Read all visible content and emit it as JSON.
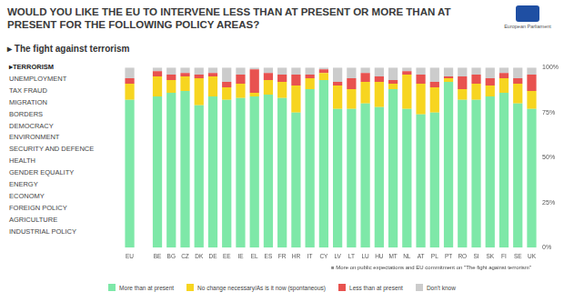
{
  "chart_data": {
    "type": "bar",
    "title": "WOULD YOU LIKE THE EU TO INTERVENE LESS THAN AT PRESENT OR MORE THAN AT PRESENT FOR THE FOLLOWING POLICY AREAS?",
    "subtitle": "The fight against terrorism",
    "categories": [
      "EU",
      null,
      "BE",
      "BG",
      "CZ",
      "DK",
      "DE",
      "EE",
      "IE",
      "EL",
      "ES",
      "FR",
      "HR",
      "IT",
      "CY",
      "LV",
      "LT",
      "LU",
      "HU",
      "MT",
      "NL",
      "AT",
      "PL",
      "PT",
      "RO",
      "SI",
      "SK",
      "FI",
      "SE",
      "UK"
    ],
    "series": [
      {
        "name": "More than at present",
        "color": "#7ee8a8",
        "values": [
          82,
          null,
          84,
          86,
          87,
          79,
          84,
          82,
          83,
          84,
          85,
          83,
          75,
          88,
          93,
          77,
          77,
          80,
          78,
          88,
          77,
          74,
          75,
          92,
          82,
          82,
          84,
          86,
          80,
          77
        ]
      },
      {
        "name": "No change necessary/As is it now (spontaneous)",
        "color": "#f7d520",
        "values": [
          9,
          null,
          11,
          7,
          8,
          15,
          11,
          7,
          8,
          2,
          8,
          9,
          15,
          6,
          4,
          13,
          11,
          12,
          14,
          3,
          19,
          17,
          14,
          2,
          6,
          9,
          6,
          8,
          11,
          10
        ]
      },
      {
        "name": "Less than at present",
        "color": "#e8524f",
        "values": [
          3,
          null,
          3,
          3,
          2,
          2,
          2,
          3,
          5,
          13,
          4,
          4,
          6,
          2,
          2,
          2,
          6,
          5,
          3,
          2,
          2,
          5,
          3,
          1,
          7,
          5,
          4,
          3,
          3,
          9
        ]
      },
      {
        "name": "Don't know",
        "color": "#cccccc",
        "values": [
          6,
          null,
          2,
          4,
          3,
          4,
          3,
          8,
          4,
          1,
          3,
          4,
          4,
          4,
          1,
          8,
          6,
          3,
          5,
          7,
          2,
          4,
          8,
          5,
          5,
          4,
          6,
          3,
          6,
          4
        ]
      }
    ],
    "stacked": true,
    "ylim": [
      0,
      100
    ],
    "yticks": [
      {
        "value": 0,
        "label": "0%"
      },
      {
        "value": 25,
        "label": "25%"
      },
      {
        "value": 50,
        "label": "50%"
      },
      {
        "value": 75,
        "label": "75%"
      },
      {
        "value": 100,
        "label": "100%"
      }
    ],
    "grid": false,
    "legend": "bottom"
  },
  "page": {
    "logo_text": "European Parliament",
    "policy_areas": [
      "TERRORISM",
      "UNEMPLOYMENT",
      "TAX FRAUD",
      "MIGRATION",
      "BORDERS",
      "DEMOCRACY",
      "ENVIRONMENT",
      "SECURITY AND DEFENCE",
      "HEALTH",
      "GENDER EQUALITY",
      "ENERGY",
      "ECONOMY",
      "FOREIGN POLICY",
      "AGRICULTURE",
      "INDUSTRIAL POLICY"
    ],
    "active_policy_area": "TERRORISM",
    "link_text": "More on public expectations and EU commitment on \"The fight against terrorism\""
  }
}
